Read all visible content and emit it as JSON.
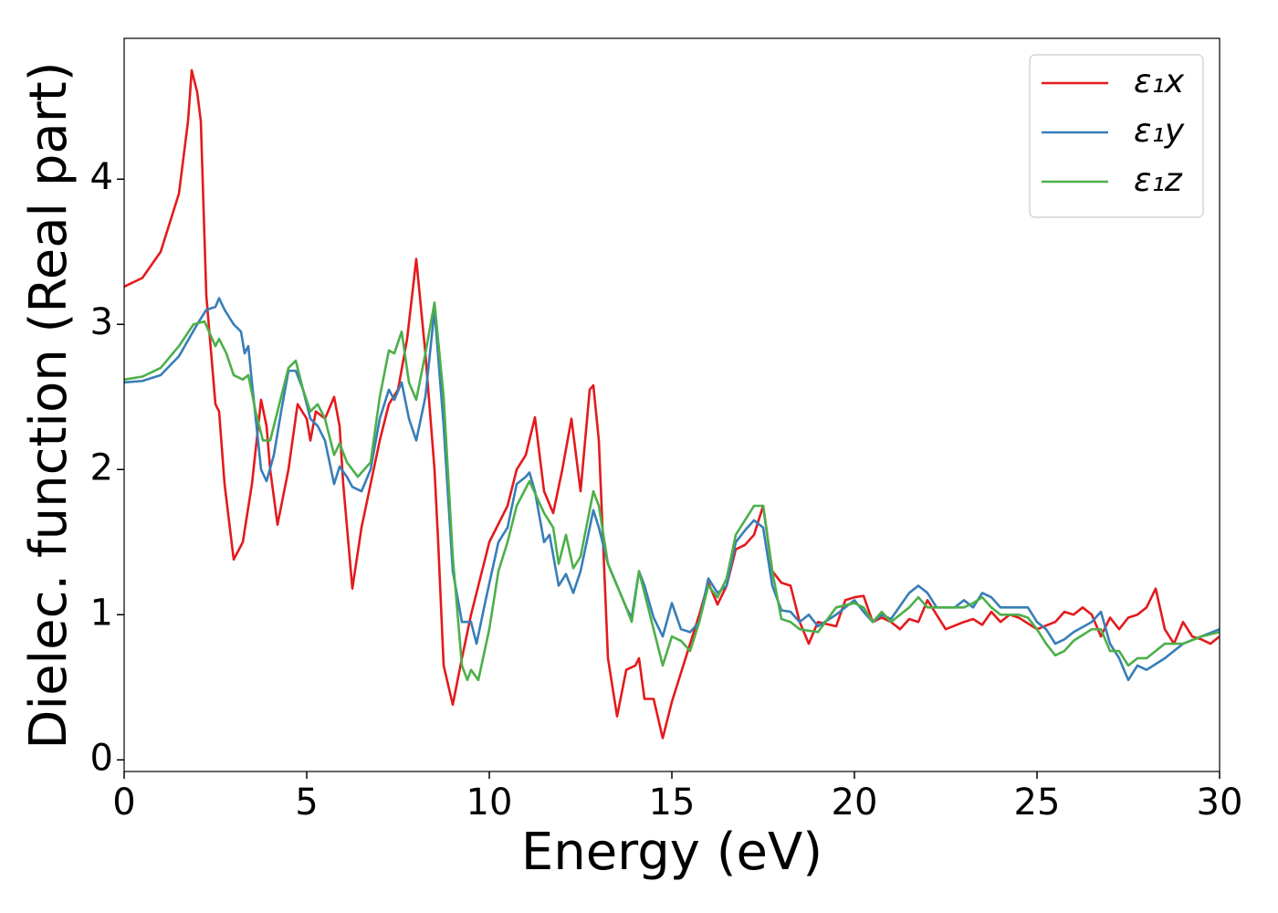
{
  "chart_data": {
    "type": "line",
    "xlabel": "Energy (eV)",
    "ylabel": "Dielec. function (Real part)",
    "xlim": [
      0,
      30
    ],
    "xticks": [
      0,
      5,
      10,
      15,
      20,
      25,
      30
    ],
    "ylim": [
      -0.08,
      4.97
    ],
    "yticks": [
      0,
      1,
      2,
      3,
      4
    ],
    "legend": "upper right",
    "grid": false,
    "series": [
      {
        "name": "ε₁x",
        "color": "#e41a1c",
        "x": [
          0,
          0.5,
          1.0,
          1.5,
          1.75,
          1.85,
          2.0,
          2.1,
          2.25,
          2.5,
          2.6,
          2.75,
          3.0,
          3.25,
          3.5,
          3.75,
          3.9,
          4.0,
          4.2,
          4.5,
          4.75,
          5.0,
          5.1,
          5.25,
          5.5,
          5.75,
          5.9,
          6.0,
          6.25,
          6.5,
          6.75,
          7.0,
          7.25,
          7.5,
          7.75,
          8.0,
          8.25,
          8.5,
          8.6,
          8.75,
          9.0,
          9.25,
          9.5,
          9.75,
          10.0,
          10.5,
          10.75,
          11.0,
          11.25,
          11.5,
          11.75,
          12.0,
          12.25,
          12.5,
          12.75,
          12.85,
          13.0,
          13.25,
          13.5,
          13.75,
          14.0,
          14.1,
          14.25,
          14.5,
          14.75,
          15.0,
          15.25,
          15.5,
          15.75,
          16.0,
          16.25,
          16.5,
          16.75,
          17.0,
          17.25,
          17.5,
          17.75,
          18.0,
          18.25,
          18.5,
          18.75,
          19.0,
          19.5,
          19.75,
          20.0,
          20.25,
          20.5,
          20.75,
          21.0,
          21.25,
          21.5,
          21.75,
          22.0,
          22.25,
          22.5,
          23.0,
          23.25,
          23.5,
          23.75,
          24.0,
          24.25,
          24.5,
          25.0,
          25.5,
          25.75,
          26.0,
          26.25,
          26.5,
          26.75,
          27.0,
          27.25,
          27.5,
          27.75,
          28.0,
          28.25,
          28.5,
          28.75,
          29.0,
          29.25,
          29.5,
          29.75,
          30.0
        ],
        "values": [
          3.26,
          3.32,
          3.5,
          3.9,
          4.4,
          4.75,
          4.6,
          4.4,
          3.2,
          2.45,
          2.4,
          1.9,
          1.38,
          1.5,
          1.9,
          2.48,
          2.3,
          2.0,
          1.62,
          2.0,
          2.45,
          2.35,
          2.2,
          2.4,
          2.35,
          2.5,
          2.3,
          1.9,
          1.18,
          1.6,
          1.9,
          2.2,
          2.45,
          2.55,
          2.9,
          3.45,
          2.8,
          2.0,
          1.5,
          0.65,
          0.38,
          0.7,
          1.0,
          1.25,
          1.5,
          1.75,
          2.0,
          2.1,
          2.36,
          1.85,
          1.7,
          2.0,
          2.35,
          1.85,
          2.55,
          2.58,
          2.2,
          0.7,
          0.3,
          0.62,
          0.65,
          0.7,
          0.42,
          0.42,
          0.15,
          0.4,
          0.6,
          0.8,
          1.0,
          1.22,
          1.07,
          1.2,
          1.45,
          1.48,
          1.55,
          1.75,
          1.3,
          1.22,
          1.2,
          0.95,
          0.8,
          0.95,
          0.92,
          1.1,
          1.12,
          1.13,
          0.95,
          0.98,
          0.95,
          0.9,
          0.97,
          0.95,
          1.1,
          1.0,
          0.9,
          0.95,
          0.97,
          0.93,
          1.02,
          0.95,
          1.0,
          0.98,
          0.9,
          0.95,
          1.02,
          1.0,
          1.05,
          1.0,
          0.85,
          0.98,
          0.9,
          0.98,
          1.0,
          1.05,
          1.18,
          0.9,
          0.8,
          0.95,
          0.85,
          0.83,
          0.8,
          0.85
        ]
      },
      {
        "name": "ε₁y",
        "color": "#377eb8",
        "x": [
          0,
          0.5,
          1.0,
          1.5,
          2.0,
          2.25,
          2.5,
          2.6,
          2.75,
          3.0,
          3.2,
          3.3,
          3.4,
          3.5,
          3.75,
          3.9,
          4.1,
          4.3,
          4.5,
          4.7,
          4.9,
          5.1,
          5.3,
          5.5,
          5.75,
          5.9,
          6.1,
          6.25,
          6.5,
          6.75,
          7.0,
          7.25,
          7.4,
          7.6,
          7.8,
          8.0,
          8.25,
          8.5,
          8.75,
          9.0,
          9.25,
          9.5,
          9.65,
          9.9,
          10.25,
          10.5,
          10.75,
          11.0,
          11.1,
          11.25,
          11.5,
          11.65,
          11.9,
          12.1,
          12.3,
          12.5,
          12.85,
          13.0,
          13.25,
          13.5,
          13.75,
          13.9,
          14.1,
          14.25,
          14.5,
          14.75,
          15.0,
          15.25,
          15.5,
          15.75,
          16.0,
          16.25,
          16.5,
          16.75,
          17.0,
          17.25,
          17.5,
          17.75,
          18.0,
          18.25,
          18.5,
          18.75,
          19.0,
          19.5,
          20.0,
          20.25,
          20.5,
          20.75,
          21.0,
          21.5,
          21.75,
          22.0,
          22.25,
          22.75,
          23.0,
          23.25,
          23.5,
          23.75,
          24.0,
          24.5,
          24.75,
          25.0,
          25.25,
          25.5,
          25.75,
          26.0,
          26.5,
          26.75,
          27.0,
          27.25,
          27.5,
          27.75,
          28.0,
          28.5,
          29.0,
          29.5,
          30.0
        ],
        "values": [
          2.6,
          2.61,
          2.65,
          2.78,
          3.0,
          3.1,
          3.12,
          3.18,
          3.1,
          3.0,
          2.95,
          2.8,
          2.85,
          2.6,
          2.0,
          1.92,
          2.1,
          2.4,
          2.68,
          2.68,
          2.55,
          2.35,
          2.3,
          2.2,
          1.9,
          2.02,
          1.95,
          1.88,
          1.85,
          2.0,
          2.35,
          2.55,
          2.48,
          2.6,
          2.35,
          2.2,
          2.5,
          3.1,
          2.3,
          1.3,
          0.95,
          0.95,
          0.8,
          1.1,
          1.5,
          1.6,
          1.9,
          1.95,
          1.98,
          1.85,
          1.5,
          1.55,
          1.2,
          1.28,
          1.15,
          1.3,
          1.72,
          1.6,
          1.35,
          1.2,
          1.05,
          0.98,
          1.3,
          1.2,
          0.98,
          0.85,
          1.08,
          0.9,
          0.88,
          0.95,
          1.25,
          1.15,
          1.2,
          1.5,
          1.58,
          1.65,
          1.6,
          1.2,
          1.03,
          1.02,
          0.95,
          1.0,
          0.92,
          1.0,
          1.1,
          1.02,
          0.95,
          1.0,
          0.97,
          1.15,
          1.2,
          1.15,
          1.05,
          1.05,
          1.1,
          1.05,
          1.15,
          1.12,
          1.05,
          1.05,
          1.05,
          0.95,
          0.9,
          0.8,
          0.83,
          0.88,
          0.95,
          1.02,
          0.8,
          0.7,
          0.55,
          0.65,
          0.62,
          0.7,
          0.8,
          0.85,
          0.9
        ]
      },
      {
        "name": "ε₁z",
        "color": "#4daf4a",
        "x": [
          0,
          0.5,
          1.0,
          1.5,
          1.9,
          2.2,
          2.5,
          2.6,
          2.8,
          3.0,
          3.25,
          3.4,
          3.6,
          3.8,
          4.0,
          4.3,
          4.5,
          4.7,
          4.9,
          5.1,
          5.3,
          5.5,
          5.75,
          5.9,
          6.1,
          6.4,
          6.75,
          7.0,
          7.25,
          7.4,
          7.6,
          7.8,
          8.0,
          8.25,
          8.5,
          8.75,
          9.0,
          9.25,
          9.4,
          9.5,
          9.7,
          10.0,
          10.25,
          10.5,
          10.75,
          11.1,
          11.5,
          11.75,
          11.9,
          12.1,
          12.3,
          12.5,
          12.85,
          13.0,
          13.25,
          13.5,
          13.75,
          13.9,
          14.1,
          14.4,
          14.75,
          15.0,
          15.25,
          15.5,
          15.75,
          16.0,
          16.25,
          16.5,
          16.75,
          17.0,
          17.25,
          17.5,
          17.75,
          18.0,
          18.25,
          18.5,
          19.0,
          19.5,
          20.0,
          20.25,
          20.5,
          20.75,
          21.0,
          21.5,
          21.75,
          22.0,
          22.5,
          23.0,
          23.25,
          23.5,
          23.75,
          24.0,
          24.5,
          24.75,
          25.0,
          25.25,
          25.5,
          25.75,
          26.0,
          26.5,
          26.75,
          27.0,
          27.25,
          27.5,
          27.75,
          28.0,
          28.25,
          28.5,
          29.0,
          29.5,
          30.0
        ],
        "values": [
          2.62,
          2.64,
          2.7,
          2.85,
          3.0,
          3.02,
          2.85,
          2.9,
          2.8,
          2.65,
          2.62,
          2.65,
          2.4,
          2.2,
          2.2,
          2.5,
          2.7,
          2.75,
          2.55,
          2.4,
          2.45,
          2.35,
          2.1,
          2.18,
          2.05,
          1.95,
          2.05,
          2.5,
          2.82,
          2.8,
          2.95,
          2.6,
          2.48,
          2.8,
          3.15,
          2.5,
          1.4,
          0.65,
          0.55,
          0.62,
          0.55,
          0.9,
          1.3,
          1.5,
          1.75,
          1.92,
          1.7,
          1.6,
          1.35,
          1.55,
          1.32,
          1.4,
          1.85,
          1.75,
          1.35,
          1.2,
          1.05,
          0.95,
          1.3,
          1.0,
          0.65,
          0.85,
          0.82,
          0.75,
          0.95,
          1.2,
          1.12,
          1.25,
          1.55,
          1.65,
          1.75,
          1.75,
          1.3,
          0.97,
          0.95,
          0.9,
          0.88,
          1.05,
          1.08,
          1.05,
          0.95,
          1.02,
          0.95,
          1.05,
          1.12,
          1.05,
          1.05,
          1.05,
          1.08,
          1.12,
          1.05,
          1.0,
          1.0,
          0.98,
          0.9,
          0.8,
          0.72,
          0.75,
          0.82,
          0.9,
          0.9,
          0.75,
          0.75,
          0.65,
          0.7,
          0.7,
          0.75,
          0.8,
          0.8,
          0.85,
          0.88
        ]
      }
    ]
  }
}
